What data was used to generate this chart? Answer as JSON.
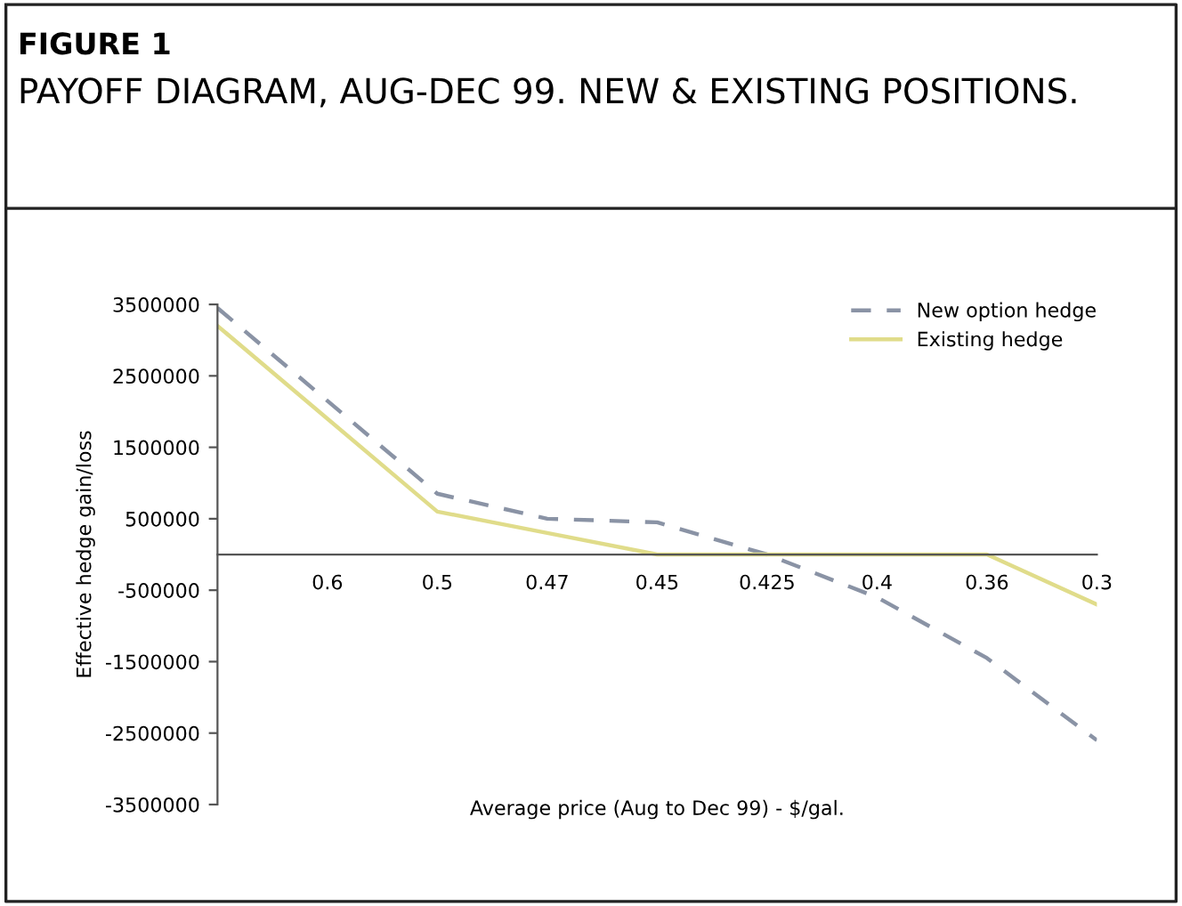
{
  "chart_data": {
    "type": "line",
    "title": "FIGURE 1",
    "subtitle": "PAYOFF DIAGRAM, AUG-DEC 99. NEW & EXISTING POSITIONS.",
    "xlabel": "Average price (Aug to Dec 99) - $/gal.",
    "ylabel": "Effective hedge gain/loss",
    "categories": [
      null,
      "0.6",
      "0.5",
      "0.47",
      "0.45",
      "0.425",
      "0.4",
      "0.36",
      "0.3"
    ],
    "series": [
      {
        "name": "New option hedge",
        "color": "#8a93a5",
        "line_style": "dashed",
        "values": [
          3450000,
          2150000,
          850000,
          500000,
          450000,
          0,
          -600000,
          -1450000,
          -2600000
        ]
      },
      {
        "name": "Existing hedge",
        "color": "#e0dc8a",
        "line_style": "solid",
        "values": [
          3200000,
          1900000,
          600000,
          300000,
          0,
          0,
          0,
          0,
          -700000
        ]
      }
    ],
    "ylim": [
      -3500000,
      3500000
    ],
    "yticks": [
      3500000,
      2500000,
      1500000,
      500000,
      -500000,
      -1500000,
      -2500000,
      -3500000
    ],
    "grid": false,
    "legend": "top right",
    "marker": "none"
  }
}
